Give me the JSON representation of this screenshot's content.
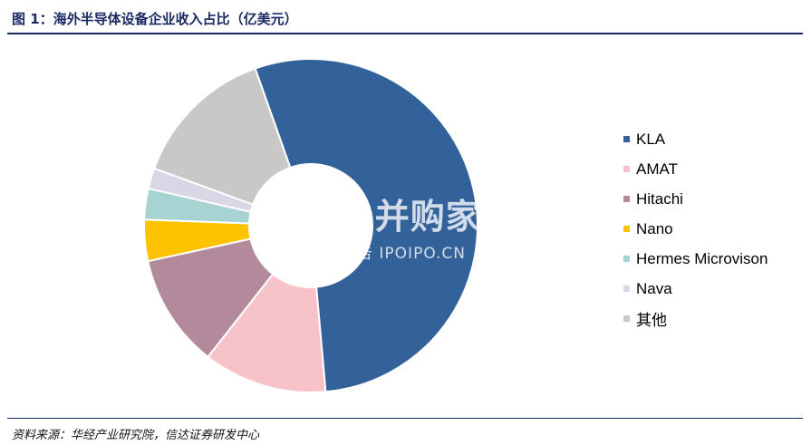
{
  "title": "图 1：海外半导体设备企业收入占比（亿美元）",
  "source": "资料来源：华经产业研究院，信达证券研发中心",
  "watermark": {
    "main": "|||| 并购家",
    "sub": "行业报告 IPOIPO.CN"
  },
  "chart_data": {
    "type": "pie",
    "variant": "donut",
    "title": "",
    "categories": [
      "KLA",
      "AMAT",
      "Hitachi",
      "Nano",
      "Hermes Microvison",
      "Nava",
      "其他"
    ],
    "values": [
      54,
      12,
      11,
      4,
      3,
      2,
      14
    ],
    "colors": [
      "#33629b",
      "#f8c3c8",
      "#b28a9c",
      "#fdc200",
      "#a8d3d3",
      "#dbd6e6",
      "#c8c8c8"
    ],
    "legend_position": "right"
  }
}
